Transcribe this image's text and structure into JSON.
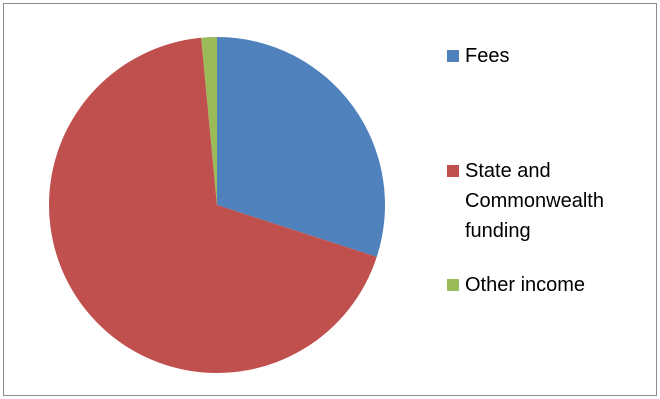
{
  "chart_data": {
    "type": "pie",
    "title": "",
    "categories": [
      "Fees",
      "State and Commonwealth funding",
      "Other income"
    ],
    "values": [
      30.0,
      68.5,
      1.5
    ],
    "colors": [
      "#4f81bd",
      "#c0504d",
      "#9bbb59"
    ],
    "legend_position": "right",
    "start_angle_deg": -90,
    "direction": "clockwise"
  },
  "legend": {
    "items": [
      {
        "label": "Fees",
        "color": "#4f81bd"
      },
      {
        "label": "State and Commonwealth funding",
        "color": "#c0504d"
      },
      {
        "label": "Other income",
        "color": "#9bbb59"
      }
    ]
  }
}
